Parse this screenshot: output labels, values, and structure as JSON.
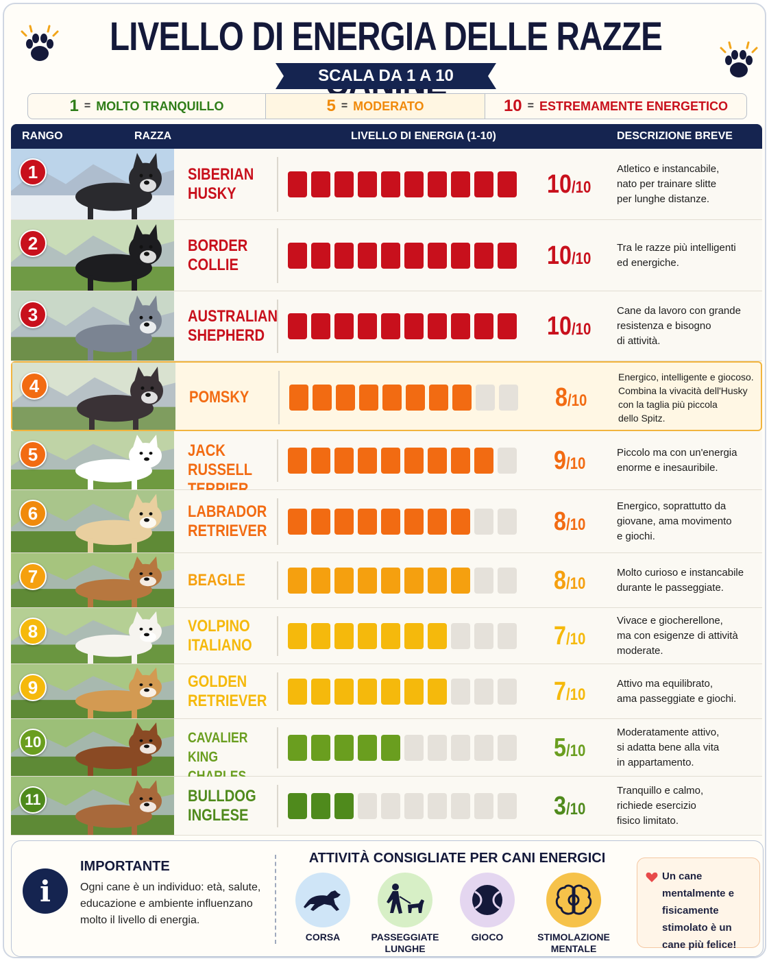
{
  "header": {
    "title": "LIVELLO DI ENERGIA DELLE RAZZE CANINE",
    "subtitle": "SCALA DA 1 A 10"
  },
  "legend": [
    {
      "num": "1",
      "eq": "=",
      "label": "MOLTO TRANQUILLO",
      "color": "#2e7d18"
    },
    {
      "num": "5",
      "eq": "=",
      "label": "MODERATO",
      "color": "#f08a0c"
    },
    {
      "num": "10",
      "eq": "=",
      "label": "ESTREMAMENTE ENERGETICO",
      "color": "#c8101c"
    }
  ],
  "table": {
    "headers": {
      "rank": "RANGO",
      "breed": "RAZZA",
      "energy": "LIVELLO DI ENERGIA (1-10)",
      "description": "DESCRIZIONE BREVE"
    },
    "max_score": 10,
    "rows": [
      {
        "rank": "1",
        "breed_lines": [
          "SIBERIAN",
          "HUSKY"
        ],
        "score": 10,
        "score_text": "10",
        "denominator": "/10",
        "color": "#c8101c",
        "description": [
          "Atletico e instancabile,",
          "nato per trainare slitte",
          "per lunghe distanze."
        ],
        "highlight": false
      },
      {
        "rank": "2",
        "breed_lines": [
          "BORDER",
          "COLLIE"
        ],
        "score": 10,
        "score_text": "10",
        "denominator": "/10",
        "color": "#c8101c",
        "description": [
          "Tra le razze più intelligenti",
          "ed energiche."
        ],
        "highlight": false
      },
      {
        "rank": "3",
        "breed_lines": [
          "AUSTRALIAN",
          "SHEPHERD"
        ],
        "score": 10,
        "score_text": "10",
        "denominator": "/10",
        "color": "#c8101c",
        "description": [
          "Cane da lavoro con grande",
          "resistenza e bisogno",
          "di attività."
        ],
        "highlight": false
      },
      {
        "rank": "4",
        "breed_lines": [
          "POMSKY"
        ],
        "score": 8,
        "score_text": "8",
        "denominator": "/10",
        "color": "#f26b12",
        "description": [
          "Energico, intelligente e giocoso.",
          "Combina la vivacità dell'Husky",
          "con la taglia più piccola",
          "dello Spitz."
        ],
        "highlight": true
      },
      {
        "rank": "5",
        "breed_lines": [
          "JACK RUSSELL",
          "TERRIER"
        ],
        "score": 9,
        "score_text": "9",
        "denominator": "/10",
        "color": "#f26b12",
        "description": [
          "Piccolo ma con un'energia",
          "enorme e inesauribile."
        ],
        "highlight": false
      },
      {
        "rank": "6",
        "breed_lines": [
          "LABRADOR",
          "RETRIEVER"
        ],
        "score": 8,
        "score_text": "8",
        "denominator": "/10",
        "color": "#f26b12",
        "description": [
          "Energico, soprattutto da",
          "giovane, ama movimento",
          "e giochi."
        ],
        "highlight": false
      },
      {
        "rank": "7",
        "breed_lines": [
          "BEAGLE"
        ],
        "score": 8,
        "score_text": "8",
        "denominator": "/10",
        "color": "#f5a00f",
        "description": [
          "Molto curioso e instancabile",
          "durante le passeggiate."
        ],
        "highlight": false
      },
      {
        "rank": "8",
        "breed_lines": [
          "VOLPINO",
          "ITALIANO"
        ],
        "score": 7,
        "score_text": "7",
        "denominator": "/10",
        "color": "#f5b90c",
        "description": [
          "Vivace e giocherellone,",
          "ma con esigenze di attività",
          "moderate."
        ],
        "highlight": false
      },
      {
        "rank": "9",
        "breed_lines": [
          "GOLDEN",
          "RETRIEVER"
        ],
        "score": 7,
        "score_text": "7",
        "denominator": "/10",
        "color": "#f5b90c",
        "description": [
          "Attivo ma equilibrato,",
          "ama passeggiate e giochi."
        ],
        "highlight": false
      },
      {
        "rank": "10",
        "breed_lines": [
          "CAVALIER KING",
          "CHARLES SPANIEL"
        ],
        "score": 5,
        "score_text": "5",
        "denominator": "/10",
        "color": "#6a9e1f",
        "description": [
          "Moderatamente attivo,",
          "si adatta bene alla vita",
          "in appartamento."
        ],
        "highlight": false
      },
      {
        "rank": "11",
        "breed_lines": [
          "BULLDOG",
          "INGLESE"
        ],
        "score": 3,
        "score_text": "3",
        "denominator": "/10",
        "color": "#4f8a1c",
        "description": [
          "Tranquillo e calmo,",
          "richiede esercizio",
          "fisico limitato."
        ],
        "highlight": false
      }
    ]
  },
  "important": {
    "title": "IMPORTANTE",
    "text": "Ogni cane è un individuo: età, salute, educazione e ambiente influenzano molto il livello di energia."
  },
  "activities": {
    "title": "ATTIVITÀ CONSIGLIATE PER CANI ENERGICI",
    "items": [
      {
        "label": "CORSA",
        "icon": "running-dog-icon",
        "bg": "#cfe5f7"
      },
      {
        "label": "PASSEGGIATE LUNGHE",
        "icon": "walking-person-dog-icon",
        "bg": "#d7efc6"
      },
      {
        "label": "GIOCO",
        "icon": "ball-icon",
        "bg": "#e4d6f0"
      },
      {
        "label": "STIMOLAZIONE MENTALE",
        "icon": "brain-gear-icon",
        "bg": "#f6d48a"
      }
    ]
  },
  "quote": {
    "text": "Un cane mentalmente e fisicamente stimolato è un cane più felice!"
  }
}
